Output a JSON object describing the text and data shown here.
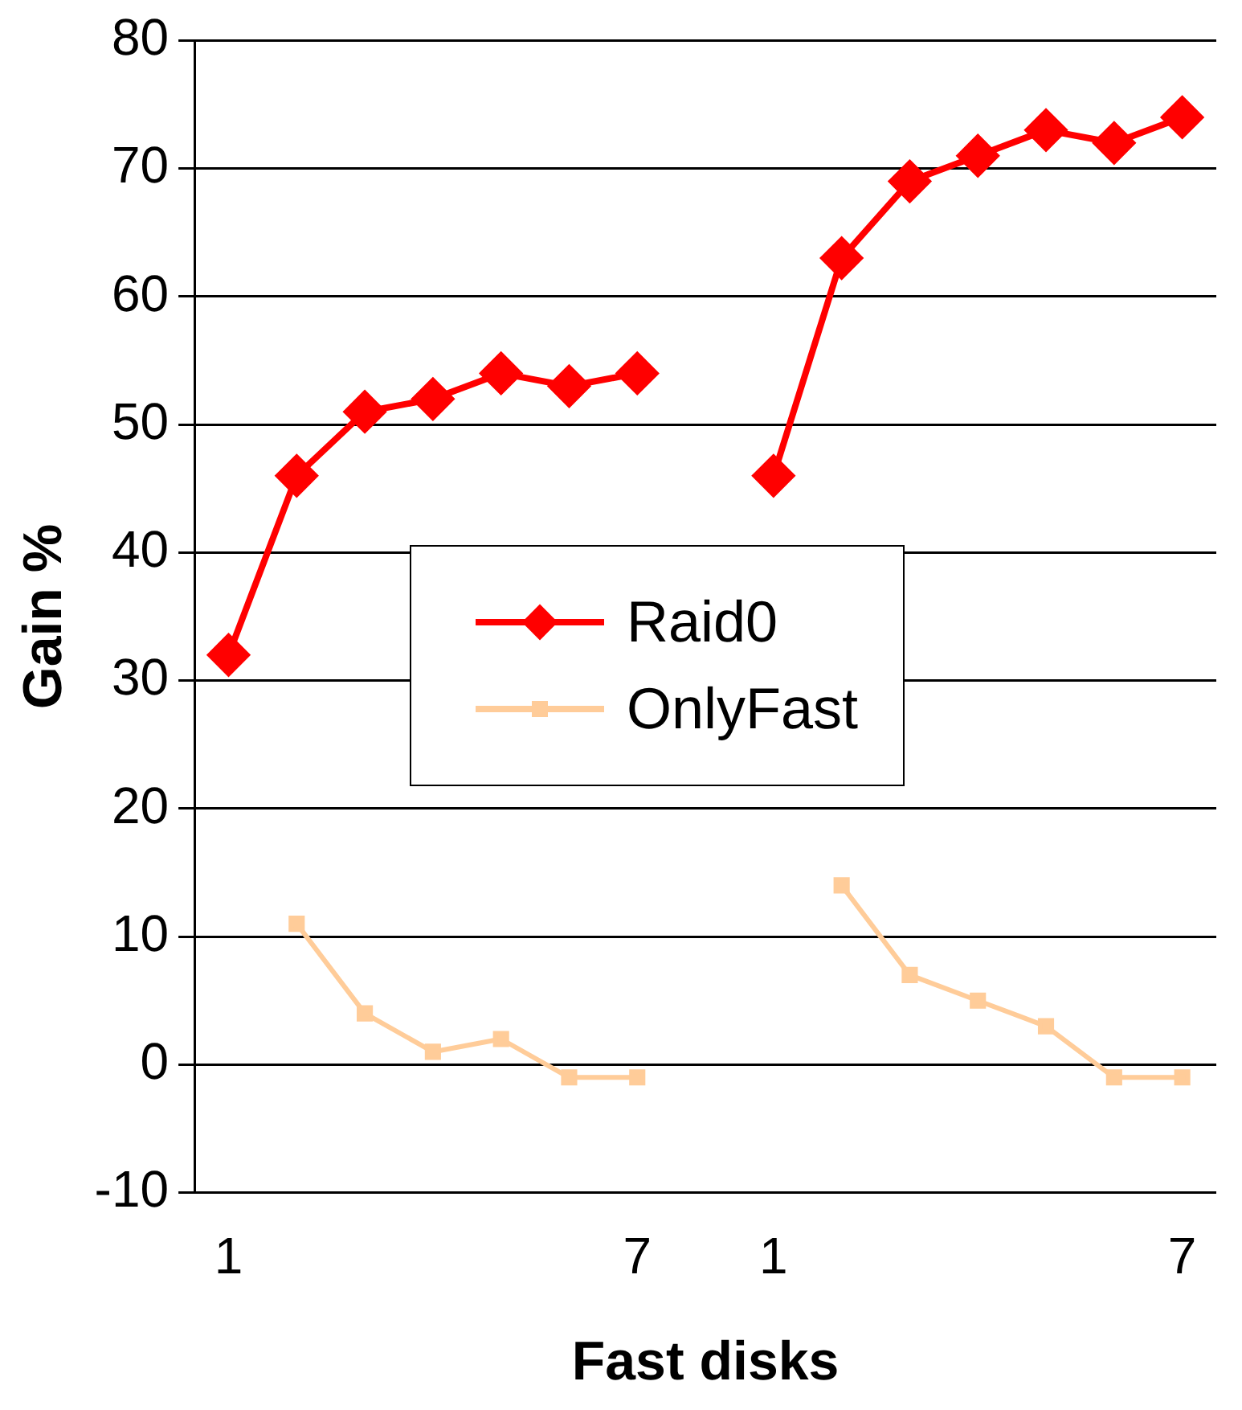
{
  "chart_data": {
    "type": "line",
    "xlabel": "Fast disks",
    "ylabel": "Gain %",
    "categories": [
      "1",
      null,
      null,
      null,
      null,
      null,
      "7",
      null,
      "1",
      null,
      null,
      null,
      null,
      null,
      "7"
    ],
    "series": [
      {
        "name": "Raid0",
        "color": "#ff0000",
        "marker": "diamond",
        "values": [
          32,
          46,
          51,
          52,
          54,
          53,
          54,
          null,
          46,
          63,
          69,
          71,
          73,
          72,
          74
        ]
      },
      {
        "name": "OnlyFast",
        "color": "#ffcc99",
        "marker": "square",
        "values": [
          null,
          11,
          4,
          1,
          2,
          -1,
          -1,
          null,
          null,
          14,
          7,
          5,
          3,
          -1,
          -1
        ]
      }
    ],
    "ylim": [
      -10,
      80
    ],
    "yticks": [
      -10,
      0,
      10,
      20,
      30,
      40,
      50,
      60,
      70,
      80
    ],
    "grid": "y",
    "legend": "center"
  }
}
